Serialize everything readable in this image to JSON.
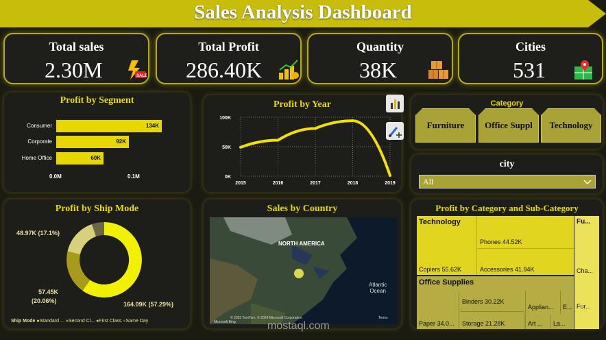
{
  "title": "Sales Analysis Dashboard",
  "kpis": [
    {
      "label": "Total sales",
      "value": "2.30M",
      "icon": "sale-lightning-icon"
    },
    {
      "label": "Total Profit",
      "value": "286.40K",
      "icon": "money-chart-icon"
    },
    {
      "label": "Quantity",
      "value": "38K",
      "icon": "boxes-icon"
    },
    {
      "label": "Cities",
      "value": "531",
      "icon": "map-pin-icon"
    }
  ],
  "segment": {
    "title": "Profit by Segment",
    "rows": [
      {
        "label": "Consumer",
        "value": "134K",
        "amount": 134
      },
      {
        "label": "Corporate",
        "value": "92K",
        "amount": 92
      },
      {
        "label": "Home Office",
        "value": "60K",
        "amount": 60
      }
    ],
    "axis": [
      "0.0M",
      "0.1M"
    ]
  },
  "chart_data": {
    "type": "line",
    "title": "Profit by Year",
    "x": [
      2015,
      2016,
      2017,
      2018,
      2019
    ],
    "values": [
      49,
      61,
      81,
      94,
      1
    ],
    "y_unit": "K",
    "ylim": [
      0,
      100
    ],
    "yticks": [
      "0K",
      "50K",
      "100K"
    ],
    "xticks": [
      "2015",
      "2016",
      "2017",
      "2018",
      "2019"
    ],
    "grid": true
  },
  "category": {
    "title": "Category",
    "items": [
      "Furniture",
      "Office Suppl",
      "Technology"
    ]
  },
  "city": {
    "title": "city",
    "selected": "All"
  },
  "ship": {
    "title": "Profit by Ship Mode",
    "labels": [
      "48.97K (17.1%)",
      "57.45K",
      "(20.06%)",
      "164.09K (57.29%)"
    ],
    "legend_title": "Ship Mode",
    "legend": [
      "Standard ...",
      "Second Cl...",
      "First Class",
      "Same Day"
    ],
    "colors": [
      "#f0f000",
      "#a89a1a",
      "#d8d07a",
      "#6b6646"
    ]
  },
  "map": {
    "title": "Sales by Country",
    "region": "NORTH AMERICA",
    "ocean": "Atlantic\nOcean",
    "copyright": "© 2023 TomTom, © 2024 Microsoft Corporation",
    "bing": "Microsoft Bing",
    "terms": "Terms"
  },
  "treemap": {
    "title": "Profit by Category and Sub-Category",
    "technology": "Technology",
    "phones": "Phones 44.52K",
    "copiers": "Copiers 55.62K",
    "accessories": "Accessories 41.94K",
    "office": "Office Supplies",
    "binders": "Binders 30.22K",
    "paper": "Paper 34.0...",
    "storage": "Storage 21.28K",
    "appliances": "Applian...",
    "e": "E...",
    "art": "Art ...",
    "la": "La...",
    "fu": "Fu...",
    "cha": "Cha...",
    "fur": "Fur..."
  },
  "watermark": "mostaql.com"
}
